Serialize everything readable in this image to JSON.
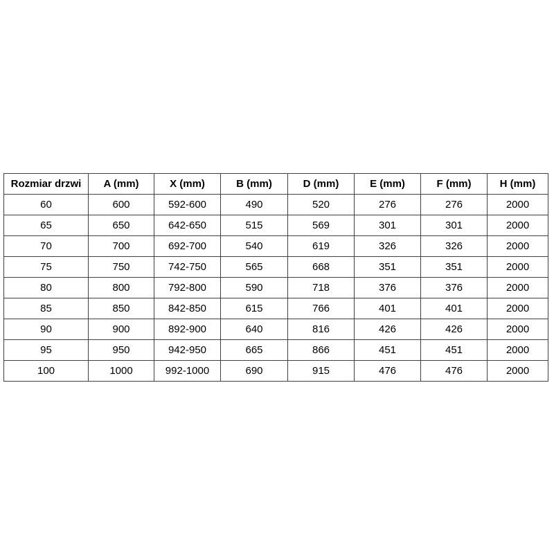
{
  "page": {
    "background_color": "#ffffff",
    "table_border_color": "#3f3f3f",
    "text_color": "#000000"
  },
  "table": {
    "columns": [
      "Rozmiar drzwi",
      "A (mm)",
      "X (mm)",
      "B (mm)",
      "D (mm)",
      "E (mm)",
      "F (mm)",
      "H (mm)"
    ],
    "rows": [
      [
        "60",
        "600",
        "592-600",
        "490",
        "520",
        "276",
        "276",
        "2000"
      ],
      [
        "65",
        "650",
        "642-650",
        "515",
        "569",
        "301",
        "301",
        "2000"
      ],
      [
        "70",
        "700",
        "692-700",
        "540",
        "619",
        "326",
        "326",
        "2000"
      ],
      [
        "75",
        "750",
        "742-750",
        "565",
        "668",
        "351",
        "351",
        "2000"
      ],
      [
        "80",
        "800",
        "792-800",
        "590",
        "718",
        "376",
        "376",
        "2000"
      ],
      [
        "85",
        "850",
        "842-850",
        "615",
        "766",
        "401",
        "401",
        "2000"
      ],
      [
        "90",
        "900",
        "892-900",
        "640",
        "816",
        "426",
        "426",
        "2000"
      ],
      [
        "95",
        "950",
        "942-950",
        "665",
        "866",
        "451",
        "451",
        "2000"
      ],
      [
        "100",
        "1000",
        "992-1000",
        "690",
        "915",
        "476",
        "476",
        "2000"
      ]
    ]
  }
}
